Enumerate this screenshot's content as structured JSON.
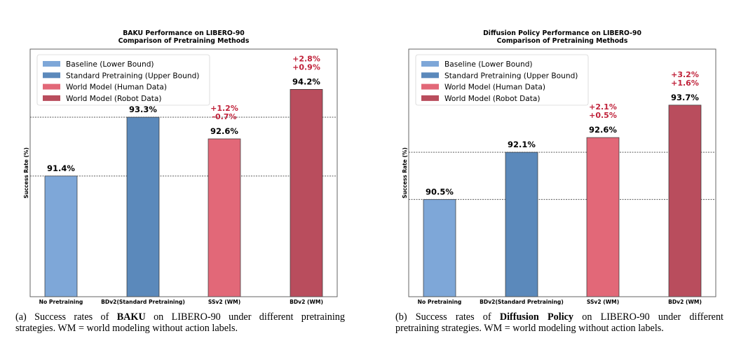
{
  "colors": {
    "baseline": "#7ea7d8",
    "standard": "#5b89bb",
    "wm_human": "#e26878",
    "wm_robot": "#b94d5d",
    "gain_text": "#c0223a"
  },
  "legend": [
    {
      "label": "Baseline (Lower Bound)",
      "color": "#7ea7d8"
    },
    {
      "label": "Standard Pretraining (Upper Bound)",
      "color": "#5b89bb"
    },
    {
      "label": "World Model (Human Data)",
      "color": "#e26878"
    },
    {
      "label": "World Model (Robot Data)",
      "color": "#b94d5d"
    }
  ],
  "chart_data": [
    {
      "type": "bar",
      "title": "BAKU Performance on LIBERO-90",
      "subtitle": "Comparison of Pretraining Methods",
      "ylabel": "Success Rate (%)",
      "xlabel": "",
      "categories": [
        "No Pretraining",
        "BDv2(Standard Pretraining)",
        "SSv2 (WM)",
        "BDv2 (WM)"
      ],
      "values": [
        91.4,
        93.3,
        92.6,
        94.2
      ],
      "value_labels": [
        "91.4%",
        "93.3%",
        "92.6%",
        "94.2%"
      ],
      "bar_colors": [
        "#7ea7d8",
        "#5b89bb",
        "#e26878",
        "#b94d5d"
      ],
      "annotations": [
        {
          "category": "SSv2 (WM)",
          "lines": [
            "+1.2%",
            "-0.7%"
          ]
        },
        {
          "category": "BDv2 (WM)",
          "lines": [
            "+2.8%",
            "+0.9%"
          ]
        }
      ],
      "reference_lines": [
        91.4,
        93.3
      ],
      "ylim": [
        87.5,
        95.5
      ],
      "y_ticks_shown": false,
      "grid": false,
      "legend_position": "top-left"
    },
    {
      "type": "bar",
      "title": "Diffusion Policy Performance on LIBERO-90",
      "subtitle": "Comparison of Pretraining Methods",
      "ylabel": "Success Rate (%)",
      "xlabel": "",
      "categories": [
        "No Pretraining",
        "BDv2(Standard Pretraining)",
        "SSv2 (WM)",
        "BDv2 (WM)"
      ],
      "values": [
        90.5,
        92.1,
        92.6,
        93.7
      ],
      "value_labels": [
        "90.5%",
        "92.1%",
        "92.6%",
        "93.7%"
      ],
      "bar_colors": [
        "#7ea7d8",
        "#5b89bb",
        "#e26878",
        "#b94d5d"
      ],
      "annotations": [
        {
          "category": "SSv2 (WM)",
          "lines": [
            "+2.1%",
            "+0.5%"
          ]
        },
        {
          "category": "BDv2 (WM)",
          "lines": [
            "+3.2%",
            "+1.6%"
          ]
        }
      ],
      "reference_lines": [
        90.5,
        92.1
      ],
      "ylim": [
        87.2,
        95.6
      ],
      "y_ticks_shown": false,
      "grid": false,
      "legend_position": "top-left"
    }
  ],
  "captions": [
    {
      "line1_before": "(a) Success rates of ",
      "line1_bold": "BAKU",
      "line1_after": " on LIBERO-90 under different pretraining",
      "line2": "strategies. WM = world modeling without action labels."
    },
    {
      "line1_before": "(b) Success rates of ",
      "line1_bold": "Diffusion Policy",
      "line1_after": " on LIBERO-90 under different",
      "line2": "pretraining strategies. WM = world modeling without action labels."
    }
  ]
}
